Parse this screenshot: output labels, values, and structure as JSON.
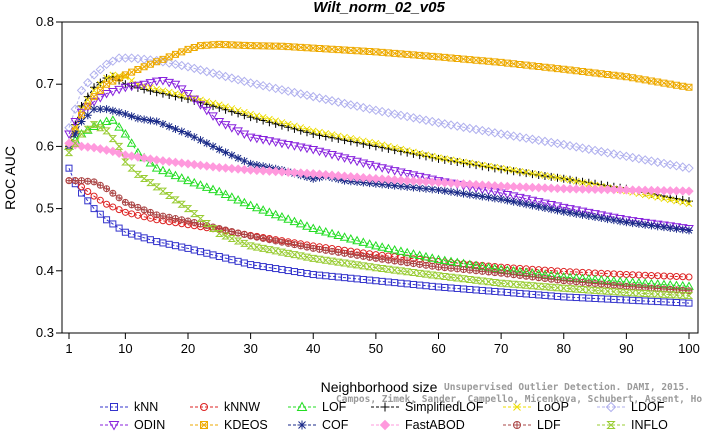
{
  "chart_data": {
    "type": "line",
    "title": "Wilt_norm_02_v05",
    "xlabel": "Neighborhood size",
    "ylabel": "ROC AUC",
    "xlim": [
      1,
      100
    ],
    "ylim": [
      0.3,
      0.8
    ],
    "xticks": [
      1,
      10,
      20,
      30,
      40,
      50,
      60,
      70,
      80,
      90,
      100
    ],
    "yticks": [
      0.3,
      0.4,
      0.5,
      0.6,
      0.7,
      0.8
    ],
    "xtick_labels": [
      "1",
      "10",
      "20",
      "30",
      "40",
      "50",
      "60",
      "70",
      "80",
      "90",
      "100"
    ],
    "ytick_labels": [
      "0.3",
      "0.4",
      "0.5",
      "0.6",
      "0.7",
      "0.8"
    ],
    "grid": false,
    "legend_position": "bottom",
    "watermark": [
      "Unsupervised Outlier Detection. DAMI, 2015.",
      "Campos, Zimek, Sander, Campello, Micenkova, Schubert, Assent, Houle"
    ],
    "series": [
      {
        "name": "kNN",
        "color": "#3333cc",
        "marker": "square",
        "x": [
          1,
          2,
          3,
          5,
          7,
          10,
          15,
          20,
          25,
          30,
          40,
          50,
          60,
          70,
          80,
          90,
          100
        ],
        "y": [
          0.565,
          0.54,
          0.525,
          0.5,
          0.482,
          0.462,
          0.447,
          0.436,
          0.423,
          0.41,
          0.394,
          0.384,
          0.374,
          0.366,
          0.358,
          0.353,
          0.348
        ]
      },
      {
        "name": "kNNW",
        "color": "#dd2222",
        "marker": "circle",
        "x": [
          1,
          2,
          3,
          5,
          7,
          10,
          15,
          20,
          25,
          30,
          40,
          50,
          60,
          70,
          80,
          90,
          100
        ],
        "y": [
          0.545,
          0.545,
          0.535,
          0.52,
          0.507,
          0.494,
          0.482,
          0.474,
          0.466,
          0.457,
          0.44,
          0.426,
          0.415,
          0.406,
          0.399,
          0.394,
          0.39
        ]
      },
      {
        "name": "LOF",
        "color": "#22dd22",
        "marker": "triangle-up",
        "x": [
          1,
          2,
          3,
          5,
          7,
          8,
          10,
          12,
          15,
          20,
          25,
          30,
          40,
          50,
          60,
          70,
          80,
          90,
          100
        ],
        "y": [
          0.6,
          0.61,
          0.62,
          0.632,
          0.64,
          0.642,
          0.62,
          0.59,
          0.565,
          0.545,
          0.527,
          0.505,
          0.468,
          0.44,
          0.418,
          0.402,
          0.39,
          0.382,
          0.375
        ]
      },
      {
        "name": "SimplifiedLOF",
        "color": "#000000",
        "marker": "plus",
        "x": [
          1,
          2,
          3,
          5,
          7,
          8,
          10,
          12,
          15,
          20,
          25,
          30,
          40,
          50,
          60,
          70,
          80,
          90,
          100
        ],
        "y": [
          0.605,
          0.635,
          0.665,
          0.695,
          0.71,
          0.712,
          0.7,
          0.694,
          0.687,
          0.676,
          0.662,
          0.647,
          0.62,
          0.6,
          0.58,
          0.563,
          0.548,
          0.532,
          0.512
        ]
      },
      {
        "name": "LoOP",
        "color": "#eedd00",
        "marker": "x",
        "x": [
          1,
          2,
          3,
          5,
          7,
          8,
          10,
          12,
          15,
          20,
          25,
          30,
          40,
          50,
          60,
          70,
          80,
          90,
          100
        ],
        "y": [
          0.6,
          0.63,
          0.66,
          0.69,
          0.71,
          0.715,
          0.712,
          0.7,
          0.692,
          0.68,
          0.667,
          0.652,
          0.625,
          0.605,
          0.582,
          0.565,
          0.548,
          0.528,
          0.508
        ]
      },
      {
        "name": "LDOF",
        "color": "#b0b0ee",
        "marker": "diamond",
        "x": [
          1,
          2,
          3,
          5,
          7,
          9,
          11,
          15,
          20,
          25,
          30,
          40,
          50,
          60,
          70,
          80,
          90,
          100
        ],
        "y": [
          0.63,
          0.66,
          0.69,
          0.715,
          0.732,
          0.742,
          0.742,
          0.738,
          0.728,
          0.715,
          0.702,
          0.68,
          0.658,
          0.638,
          0.62,
          0.603,
          0.584,
          0.565
        ]
      },
      {
        "name": "ODIN",
        "color": "#8822dd",
        "marker": "triangle-down",
        "x": [
          1,
          2,
          3,
          5,
          7,
          10,
          13,
          15,
          16,
          18,
          20,
          25,
          30,
          40,
          50,
          60,
          70,
          80,
          90,
          100
        ],
        "y": [
          0.62,
          0.64,
          0.655,
          0.672,
          0.685,
          0.695,
          0.7,
          0.705,
          0.706,
          0.7,
          0.685,
          0.64,
          0.615,
          0.595,
          0.568,
          0.545,
          0.525,
          0.502,
          0.482,
          0.468
        ]
      },
      {
        "name": "KDEOS",
        "color": "#eeaa00",
        "marker": "square-x",
        "x": [
          1,
          2,
          3,
          5,
          7,
          10,
          13,
          16,
          20,
          22,
          25,
          30,
          35,
          40,
          50,
          60,
          70,
          80,
          90,
          100
        ],
        "y": [
          0.6,
          0.625,
          0.65,
          0.68,
          0.7,
          0.715,
          0.728,
          0.74,
          0.756,
          0.762,
          0.764,
          0.762,
          0.761,
          0.758,
          0.752,
          0.744,
          0.735,
          0.724,
          0.712,
          0.695
        ]
      },
      {
        "name": "COF",
        "color": "#1a2a88",
        "marker": "asterisk",
        "x": [
          1,
          2,
          3,
          5,
          7,
          10,
          12,
          15,
          20,
          25,
          30,
          35,
          40,
          42,
          45,
          50,
          60,
          70,
          80,
          90,
          100
        ],
        "y": [
          0.6,
          0.62,
          0.64,
          0.66,
          0.66,
          0.652,
          0.645,
          0.64,
          0.62,
          0.595,
          0.572,
          0.562,
          0.548,
          0.552,
          0.545,
          0.54,
          0.53,
          0.515,
          0.495,
          0.478,
          0.465
        ]
      },
      {
        "name": "FastABOD",
        "color": "#ff99dd",
        "marker": "diamond-filled",
        "x": [
          1,
          3,
          5,
          8,
          10,
          15,
          20,
          25,
          30,
          40,
          50,
          60,
          70,
          80,
          90,
          100
        ],
        "y": [
          0.605,
          0.6,
          0.598,
          0.592,
          0.586,
          0.578,
          0.572,
          0.566,
          0.562,
          0.556,
          0.548,
          0.542,
          0.536,
          0.532,
          0.53,
          0.528
        ]
      },
      {
        "name": "LDF",
        "color": "#aa4444",
        "marker": "circle-plus",
        "x": [
          1,
          2,
          3,
          5,
          7,
          10,
          15,
          20,
          25,
          30,
          40,
          50,
          60,
          70,
          80,
          90,
          100
        ],
        "y": [
          0.545,
          0.545,
          0.545,
          0.543,
          0.532,
          0.51,
          0.49,
          0.48,
          0.468,
          0.456,
          0.436,
          0.42,
          0.406,
          0.396,
          0.384,
          0.375,
          0.368
        ]
      },
      {
        "name": "INFLO",
        "color": "#99cc33",
        "marker": "hourglass",
        "x": [
          1,
          3,
          5,
          7,
          9,
          10,
          12,
          15,
          20,
          25,
          30,
          40,
          50,
          60,
          70,
          80,
          90,
          100
        ],
        "y": [
          0.59,
          0.62,
          0.635,
          0.625,
          0.6,
          0.575,
          0.555,
          0.535,
          0.5,
          0.46,
          0.44,
          0.42,
          0.405,
          0.392,
          0.38,
          0.372,
          0.365,
          0.36
        ]
      }
    ]
  }
}
